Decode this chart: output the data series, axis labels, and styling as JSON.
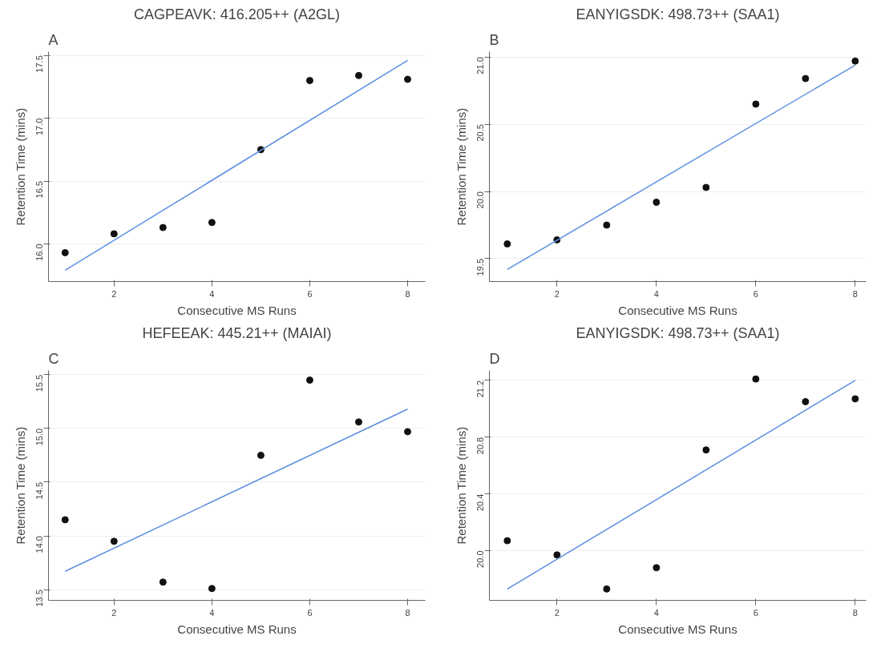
{
  "chart_data": [
    {
      "type": "scatter",
      "title": "CAGPEAVK: 416.205++ (A2GL)",
      "annotations": [
        "A"
      ],
      "xlabel": "Consecutive MS Runs",
      "ylabel": "Retention Time (mins)",
      "xlim": [
        0.66,
        8.36
      ],
      "ylim": [
        15.7,
        17.53
      ],
      "xticks": [
        2,
        4,
        6,
        8
      ],
      "yticks": [
        {
          "value": 16.0,
          "label": "16.0"
        },
        {
          "value": 16.5,
          "label": "16.5"
        },
        {
          "value": 17.0,
          "label": "17.0"
        },
        {
          "value": 17.5,
          "label": "17.5"
        }
      ],
      "grid": "y",
      "series": [
        {
          "marker": "circle",
          "color": "#111111",
          "x": [
            1,
            2,
            3,
            4,
            5,
            6,
            7,
            8
          ],
          "values": [
            15.93,
            16.08,
            16.13,
            16.17,
            16.75,
            17.3,
            17.34,
            17.31
          ]
        },
        {
          "type": "line",
          "marker": "none",
          "color": "#5b8fe0",
          "x": [
            1,
            8
          ],
          "values": [
            15.79,
            17.46
          ]
        }
      ]
    },
    {
      "type": "scatter",
      "title": "EANYIGSDK: 498.73++ (SAA1)",
      "annotations": [
        "B"
      ],
      "xlabel": "Consecutive MS Runs",
      "ylabel": "Retention Time (mins)",
      "xlim": [
        0.64,
        8.22
      ],
      "ylim": [
        19.33,
        21.04
      ],
      "xticks": [
        2,
        4,
        6,
        8
      ],
      "yticks": [
        {
          "value": 19.5,
          "label": "19.5"
        },
        {
          "value": 20.0,
          "label": "20.0"
        },
        {
          "value": 20.5,
          "label": "20.5"
        },
        {
          "value": 21.0,
          "label": "21.0"
        }
      ],
      "grid": "y",
      "series": [
        {
          "marker": "circle",
          "color": "#111111",
          "x": [
            1,
            2,
            3,
            4,
            5,
            6,
            7,
            8
          ],
          "values": [
            19.61,
            19.64,
            19.75,
            19.92,
            20.03,
            20.65,
            20.84,
            20.97
          ]
        },
        {
          "type": "line",
          "marker": "none",
          "color": "#5b8fe0",
          "x": [
            1,
            8
          ],
          "values": [
            19.42,
            20.94
          ]
        }
      ]
    },
    {
      "type": "scatter",
      "title": "HEFEEAK: 445.21++ (MAIAI)",
      "annotations": [
        "C"
      ],
      "xlabel": "Consecutive MS Runs",
      "ylabel": "Retention Time (mins)",
      "xlim": [
        0.66,
        8.36
      ],
      "ylim": [
        13.4,
        15.54
      ],
      "xticks": [
        2,
        4,
        6,
        8
      ],
      "yticks": [
        {
          "value": 13.5,
          "label": "13.5"
        },
        {
          "value": 14.0,
          "label": "14.0"
        },
        {
          "value": 14.5,
          "label": "14.5"
        },
        {
          "value": 15.0,
          "label": "15.0"
        },
        {
          "value": 15.5,
          "label": "15.5"
        }
      ],
      "grid": "y",
      "series": [
        {
          "marker": "circle",
          "color": "#111111",
          "x": [
            1,
            2,
            3,
            4,
            5,
            6,
            7,
            8
          ],
          "values": [
            14.15,
            13.95,
            13.57,
            13.51,
            14.75,
            15.45,
            15.06,
            14.97
          ]
        },
        {
          "type": "line",
          "marker": "none",
          "color": "#5b8fe0",
          "x": [
            1,
            8
          ],
          "values": [
            13.67,
            15.18
          ]
        }
      ]
    },
    {
      "type": "scatter",
      "title": "EANYIGSDK: 498.73++ (SAA1)",
      "annotations": [
        "D"
      ],
      "xlabel": "Consecutive MS Runs",
      "ylabel": "Retention Time (mins)",
      "xlim": [
        0.64,
        8.22
      ],
      "ylim": [
        19.65,
        21.27
      ],
      "xticks": [
        2,
        4,
        6,
        8
      ],
      "yticks": [
        {
          "value": 20.0,
          "label": "20.0"
        },
        {
          "value": 20.4,
          "label": "20.4"
        },
        {
          "value": 20.8,
          "label": "20.8"
        },
        {
          "value": 21.2,
          "label": "21.2"
        }
      ],
      "grid": "y",
      "series": [
        {
          "marker": "circle",
          "color": "#111111",
          "x": [
            1,
            2,
            3,
            4,
            5,
            6,
            7,
            8
          ],
          "values": [
            20.07,
            19.97,
            19.73,
            19.88,
            20.71,
            21.21,
            21.05,
            21.07
          ]
        },
        {
          "type": "line",
          "marker": "none",
          "color": "#5b8fe0",
          "x": [
            1,
            8
          ],
          "values": [
            19.73,
            21.2
          ]
        }
      ]
    }
  ]
}
